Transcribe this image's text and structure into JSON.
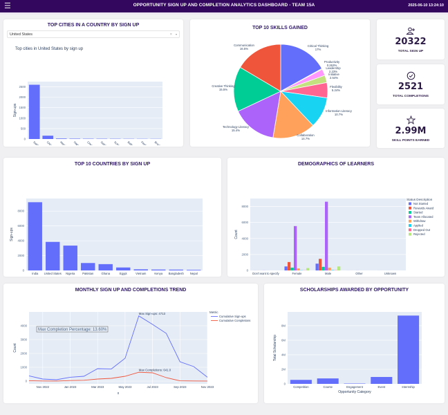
{
  "header": {
    "menu_icon": "hamburger-icon",
    "title": "OPPORTUNITY SIGN UP AND COMPLETION ANALYTICS DASHBOARD - TEAM 15A",
    "timestamp": "2025-06-10 13:24:10"
  },
  "colors": {
    "header_bg": "#33075e",
    "title_color": "#2b1466",
    "bar": "#636efa",
    "plot_bg": "#e5ecf6"
  },
  "cities_card": {
    "title": "TOP CITIES IN A COUNTRY BY SIGN UP",
    "dropdown_value": "United States",
    "dropdown_clear": "×",
    "dropdown_caret": "▾"
  },
  "skills_card": {
    "title": "TOP 10 SKILLS GAINED"
  },
  "kpis": [
    {
      "icon": "user-plus-icon",
      "value": "20322",
      "label": "TOTAL SIGN UP"
    },
    {
      "icon": "check-circle-icon",
      "value": "2521",
      "label": "TOTAL COMPLETIONS"
    },
    {
      "icon": "star-icon",
      "value": "2.99M",
      "label": "SKILL POINTS EARNED"
    }
  ],
  "countries_card": {
    "title": "TOP 10 COUNTRIES BY SIGN UP"
  },
  "demographics_card": {
    "title": "DEMOGRAPHICS OF LEARNERS"
  },
  "trend_card": {
    "title": "MONTHLY SIGN UP AND COMPLETIONS TREND"
  },
  "scholarships_card": {
    "title": "SCHOLARSHIPS AWARDED BY OPPORTUNITY"
  },
  "chart_data": [
    {
      "id": "cities",
      "type": "bar",
      "title": "Top cities in United States by sign up",
      "xlabel": "index",
      "ylabel": "Sign-ups",
      "categories": [
        "Saint Louis",
        "Chicago",
        "Maryland Heights",
        "Naperville",
        "Chesterfield",
        "Saint Charles",
        "Schaumburg",
        "Ballwin",
        "Florissant",
        "Brooklyn"
      ],
      "values": [
        2600,
        160,
        25,
        18,
        15,
        14,
        12,
        10,
        9,
        8
      ],
      "yticks": [
        0,
        500,
        1000,
        1500,
        2000,
        2500
      ],
      "ylim": [
        0,
        2750
      ],
      "grid": true
    },
    {
      "id": "skills",
      "type": "pie",
      "title": "TOP 10 SKILLS GAINED",
      "slices": [
        {
          "label": "Critical Thinking",
          "pct": 17,
          "pct_text": "17%",
          "color": "#636efa"
        },
        {
          "label": "Productivity",
          "pct": 0.263,
          "pct_text": "0.263%",
          "color": "#b6e880"
        },
        {
          "label": "Leadership",
          "pct": 2.23,
          "pct_text": "2.23%",
          "color": "#ff97ff"
        },
        {
          "label": "Initiative",
          "pct": 2.54,
          "pct_text": "2.54%",
          "color": "#c4e17f"
        },
        {
          "label": "Flexibility",
          "pct": 5.24,
          "pct_text": "5.24%",
          "color": "#ff6692"
        },
        {
          "label": "Information Literacy",
          "pct": 10.7,
          "pct_text": "10.7%",
          "color": "#19d3f3"
        },
        {
          "label": "Collaboration",
          "pct": 14.7,
          "pct_text": "14.7%",
          "color": "#ffa15a"
        },
        {
          "label": "Technology Literacy",
          "pct": 15.4,
          "pct_text": "15.4%",
          "color": "#ab63fa"
        },
        {
          "label": "Creative Thinking",
          "pct": 15.5,
          "pct_text": "15.5%",
          "color": "#00cc96"
        },
        {
          "label": "Communication",
          "pct": 16.5,
          "pct_text": "16.5%",
          "color": "#ef553b"
        }
      ]
    },
    {
      "id": "countries",
      "type": "bar",
      "title": "TOP 10 COUNTRIES BY SIGN UP",
      "xlabel": "index",
      "ylabel": "Sign-ups",
      "categories": [
        "India",
        "United States",
        "Nigeria",
        "Pakistan",
        "Ghana",
        "Egypt",
        "Vietnam",
        "Kenya",
        "Bangladesh",
        "Nepal"
      ],
      "values": [
        9200,
        3850,
        3350,
        1000,
        850,
        400,
        150,
        120,
        110,
        80
      ],
      "yticks": [
        0,
        2000,
        4000,
        6000,
        8000
      ],
      "ylim": [
        0,
        9700
      ],
      "grid": true
    },
    {
      "id": "demographics",
      "type": "bar",
      "title": "DEMOGRAPHICS OF LEARNERS",
      "xlabel": "Gender",
      "ylabel": "Count",
      "legend_title": "Status Description",
      "legend_position": "right",
      "categories": [
        "Don't want to specify",
        "Female",
        "Male",
        "Other",
        "Unknown"
      ],
      "series": [
        {
          "name": "Not Started",
          "color": "#636efa",
          "values": [
            5,
            500,
            850,
            3,
            2
          ]
        },
        {
          "name": "Rewards Award",
          "color": "#ef553b",
          "values": [
            3,
            1050,
            1450,
            2,
            1
          ]
        },
        {
          "name": "Started",
          "color": "#00cc96",
          "values": [
            2,
            350,
            450,
            1,
            1
          ]
        },
        {
          "name": "Team Allocated",
          "color": "#ab63fa",
          "values": [
            10,
            5550,
            8600,
            5,
            3
          ]
        },
        {
          "name": "Withdraw",
          "color": "#ffa15a",
          "values": [
            1,
            250,
            350,
            1,
            0
          ]
        },
        {
          "name": "Applied",
          "color": "#19d3f3",
          "values": [
            0,
            30,
            50,
            0,
            0
          ]
        },
        {
          "name": "Dropped Out",
          "color": "#ff6692",
          "values": [
            0,
            20,
            30,
            0,
            0
          ]
        },
        {
          "name": "Rejected",
          "color": "#b6e880",
          "values": [
            0,
            300,
            500,
            0,
            0
          ]
        }
      ],
      "yticks": [
        0,
        2000,
        4000,
        6000,
        8000
      ],
      "ylim": [
        0,
        9000
      ],
      "grid": true
    },
    {
      "id": "trend",
      "type": "line",
      "title": "MONTHLY SIGN UP AND COMPLETIONS TREND",
      "xlabel": "x",
      "ylabel": "Count",
      "legend_title": "Metric",
      "legend_position": "right",
      "x": [
        "Oct 2022",
        "Nov 2022",
        "Dec 2022",
        "Jan 2023",
        "Feb 2023",
        "Mar 2023",
        "Apr 2023",
        "May 2023",
        "Jun 2023",
        "Jul 2023",
        "Aug 2023",
        "Sep 2023",
        "Oct 2023",
        "Nov 2023"
      ],
      "xticks": [
        "Nov 2022",
        "Jan 2023",
        "Mar 2023",
        "May 2023",
        "Jul 2023",
        "Sep 2023",
        "Nov 2023"
      ],
      "series": [
        {
          "name": "Cumulative Sign-ups",
          "color": "#636efa",
          "values": [
            380,
            150,
            100,
            280,
            350,
            900,
            880,
            1650,
            4713,
            4100,
            3450,
            1400,
            1050,
            280
          ]
        },
        {
          "name": "Cumulative Completions",
          "color": "#ef553b",
          "values": [
            30,
            10,
            5,
            40,
            60,
            150,
            200,
            350,
            641,
            600,
            250,
            20,
            10,
            5
          ]
        }
      ],
      "annotations": [
        {
          "text": "Max Sign-ups: 4713",
          "x": "Jun 2023",
          "y": 4713
        },
        {
          "text": "Max Completions: 641.0",
          "x": "Jun 2023",
          "y": 641
        },
        {
          "text": "Max Completion Percentage: 13.60%",
          "boxed": true
        }
      ],
      "yticks": [
        0,
        1000,
        2000,
        3000,
        4000
      ],
      "ylim": [
        -200,
        5000
      ],
      "grid": true
    },
    {
      "id": "scholarships",
      "type": "bar",
      "title": "SCHOLARSHIPS AWARDED BY OPPORTUNITY",
      "xlabel": "Opportunity Category",
      "ylabel": "Total Scholarship",
      "categories": [
        "Competition",
        "Course",
        "Engagement",
        "Event",
        "Internship"
      ],
      "values": [
        550000,
        750000,
        50000,
        950000,
        9400000
      ],
      "yticks": [
        0,
        2000000,
        4000000,
        6000000,
        8000000
      ],
      "ytick_labels": [
        "0",
        "2M",
        "4M",
        "6M",
        "8M"
      ],
      "ylim": [
        0,
        9900000
      ],
      "grid": true
    }
  ]
}
